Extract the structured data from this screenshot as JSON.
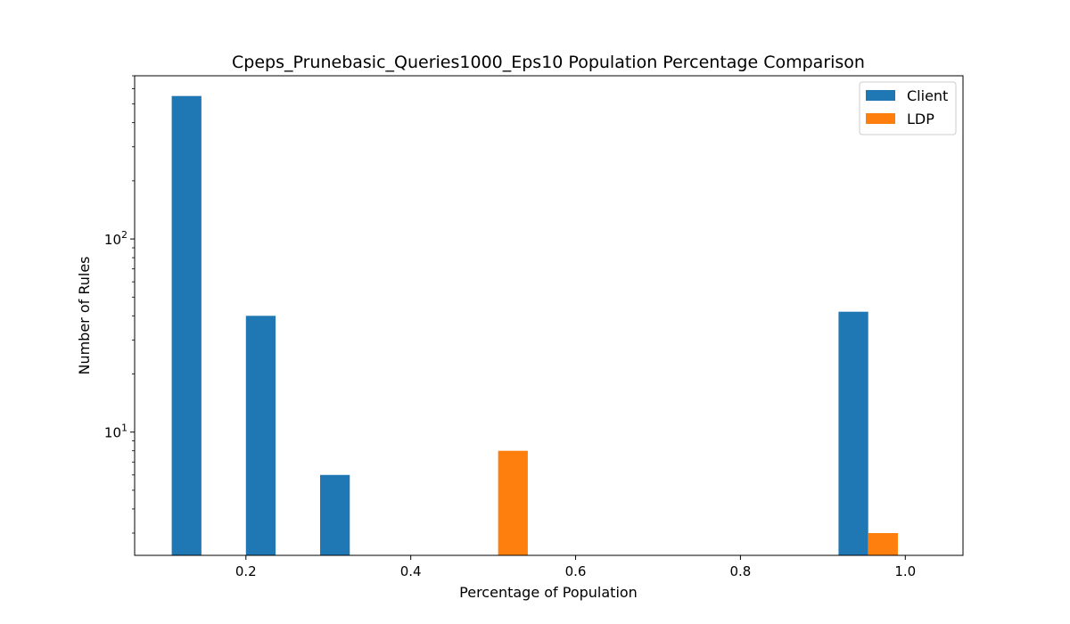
{
  "chart_data": {
    "type": "bar",
    "title": "Cpeps_Prunebasic_Queries1000_Eps10 Population Percentage Comparison",
    "xlabel": "Percentage of Population",
    "ylabel": "Number of Rules",
    "yscale": "log",
    "xlim": [
      0.065,
      1.07
    ],
    "ylim": [
      2.3,
      700
    ],
    "x_ticks": [
      {
        "value": 0.2,
        "label": "0.2"
      },
      {
        "value": 0.4,
        "label": "0.4"
      },
      {
        "value": 0.6,
        "label": "0.6"
      },
      {
        "value": 0.8,
        "label": "0.8"
      },
      {
        "value": 1.0,
        "label": "1.0"
      }
    ],
    "y_ticks": [
      {
        "value": 10,
        "base": "10",
        "exp": "1"
      },
      {
        "value": 100,
        "base": "10",
        "exp": "2"
      }
    ],
    "grid": false,
    "legend_position": "top-right",
    "series": [
      {
        "name": "Client",
        "color": "#1f77b4",
        "points": [
          {
            "x0": 0.11,
            "x1": 0.146,
            "y": 550
          },
          {
            "x0": 0.2,
            "x1": 0.236,
            "y": 40
          },
          {
            "x0": 0.29,
            "x1": 0.326,
            "y": 6
          },
          {
            "x0": 0.919,
            "x1": 0.955,
            "y": 42
          }
        ]
      },
      {
        "name": "LDP",
        "color": "#ff7f0e",
        "points": [
          {
            "x0": 0.506,
            "x1": 0.542,
            "y": 8
          },
          {
            "x0": 0.955,
            "x1": 0.991,
            "y": 3
          }
        ]
      }
    ]
  }
}
